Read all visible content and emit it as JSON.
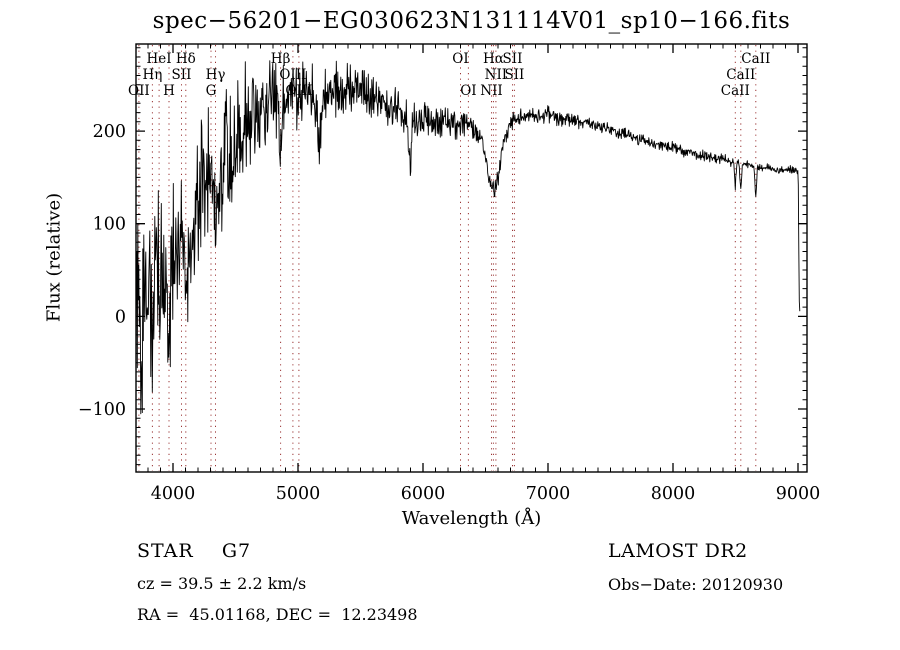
{
  "title": "spec−56201−EG030623N131114V01_sp10−166.fits",
  "chart_data": {
    "type": "line",
    "title": "spec−56201−EG030623N131114V01_sp10−166.fits",
    "xlabel": "Wavelength (Å)",
    "ylabel": "Flux (relative)",
    "xlim": [
      3704,
      9072
    ],
    "ylim": [
      -168,
      294
    ],
    "xticks": [
      4000,
      5000,
      6000,
      7000,
      8000,
      9000
    ],
    "yticks": [
      -100,
      0,
      100,
      200
    ],
    "x_minor_step": 100,
    "y_minor_step": 10,
    "grid": false,
    "legend": "none",
    "line_color": "#000000",
    "spectral_line_color": "#993333",
    "sample_step_angstrom": 4,
    "spectral_lines": [
      {
        "wavelength": 3727,
        "label": "OII",
        "row": 3
      },
      {
        "wavelength": 3835,
        "label": "Hη",
        "row": 2
      },
      {
        "wavelength": 3889,
        "label": "HeI",
        "row": 1
      },
      {
        "wavelength": 3968,
        "label": "H",
        "row": 3
      },
      {
        "wavelength": 4068,
        "label": "SII",
        "row": 2
      },
      {
        "wavelength": 4102,
        "label": "Hδ",
        "row": 1
      },
      {
        "wavelength": 4304,
        "label": "G",
        "row": 3
      },
      {
        "wavelength": 4340,
        "label": "Hγ",
        "row": 2
      },
      {
        "wavelength": 4861,
        "label": "Hβ",
        "row": 1
      },
      {
        "wavelength": 4959,
        "label": "OIII",
        "row": 2
      },
      {
        "wavelength": 5007,
        "label": "OIII",
        "row": 3
      },
      {
        "wavelength": 6300,
        "label": "OI",
        "row": 1
      },
      {
        "wavelength": 6363,
        "label": "OI",
        "row": 3
      },
      {
        "wavelength": 6548,
        "label": "NII",
        "row": 3
      },
      {
        "wavelength": 6563,
        "label": "Hα",
        "row": 1
      },
      {
        "wavelength": 6583,
        "label": "NII",
        "row": 2
      },
      {
        "wavelength": 6716,
        "label": "SII",
        "row": 1
      },
      {
        "wavelength": 6731,
        "label": "SII",
        "row": 2
      },
      {
        "wavelength": 8498,
        "label": "CaII",
        "row": 3
      },
      {
        "wavelength": 8542,
        "label": "CaII",
        "row": 2
      },
      {
        "wavelength": 8662,
        "label": "CaII",
        "row": 1
      }
    ],
    "flux_envelope": [
      [
        3704,
        15
      ],
      [
        3750,
        22
      ],
      [
        3800,
        32
      ],
      [
        3850,
        42
      ],
      [
        3900,
        52
      ],
      [
        3950,
        64
      ],
      [
        4000,
        72
      ],
      [
        4050,
        82
      ],
      [
        4100,
        94
      ],
      [
        4150,
        105
      ],
      [
        4200,
        117
      ],
      [
        4250,
        130
      ],
      [
        4300,
        142
      ],
      [
        4350,
        154
      ],
      [
        4400,
        167
      ],
      [
        4450,
        180
      ],
      [
        4500,
        192
      ],
      [
        4550,
        202
      ],
      [
        4600,
        212
      ],
      [
        4650,
        219
      ],
      [
        4700,
        225
      ],
      [
        4750,
        229
      ],
      [
        4800,
        233
      ],
      [
        4850,
        236
      ],
      [
        4900,
        239
      ],
      [
        4950,
        241
      ],
      [
        5000,
        242
      ],
      [
        5100,
        241
      ],
      [
        5200,
        240
      ],
      [
        5300,
        242
      ],
      [
        5400,
        244
      ],
      [
        5500,
        242
      ],
      [
        5600,
        237
      ],
      [
        5700,
        230
      ],
      [
        5800,
        222
      ],
      [
        5900,
        213
      ],
      [
        6000,
        210
      ],
      [
        6100,
        212
      ],
      [
        6200,
        210
      ],
      [
        6300,
        207
      ],
      [
        6400,
        203
      ],
      [
        6500,
        199
      ],
      [
        6600,
        197
      ],
      [
        6650,
        202
      ],
      [
        6700,
        208
      ],
      [
        6800,
        216
      ],
      [
        6900,
        219
      ],
      [
        7000,
        218
      ],
      [
        7100,
        215
      ],
      [
        7200,
        212
      ],
      [
        7300,
        209
      ],
      [
        7400,
        205
      ],
      [
        7500,
        201
      ],
      [
        7600,
        197
      ],
      [
        7700,
        193
      ],
      [
        7800,
        189
      ],
      [
        7900,
        185
      ],
      [
        8000,
        182
      ],
      [
        8100,
        178
      ],
      [
        8200,
        175
      ],
      [
        8300,
        172
      ],
      [
        8400,
        169
      ],
      [
        8500,
        166
      ],
      [
        8600,
        164
      ],
      [
        8700,
        161
      ],
      [
        8800,
        159
      ],
      [
        8900,
        158
      ],
      [
        8980,
        159
      ],
      [
        9000,
        156
      ],
      [
        9003,
        130
      ],
      [
        9006,
        70
      ],
      [
        9009,
        20
      ],
      [
        9012,
        6
      ],
      [
        9016,
        4
      ]
    ],
    "noise_amplitude": [
      [
        3704,
        135
      ],
      [
        3750,
        130
      ],
      [
        3800,
        122
      ],
      [
        3850,
        114
      ],
      [
        3900,
        108
      ],
      [
        3950,
        104
      ],
      [
        4000,
        100
      ],
      [
        4100,
        102
      ],
      [
        4200,
        98
      ],
      [
        4300,
        92
      ],
      [
        4400,
        85
      ],
      [
        4500,
        78
      ],
      [
        4600,
        72
      ],
      [
        4700,
        62
      ],
      [
        4800,
        52
      ],
      [
        4900,
        46
      ],
      [
        5000,
        43
      ],
      [
        5100,
        40
      ],
      [
        5200,
        38
      ],
      [
        5300,
        36
      ],
      [
        5400,
        34
      ],
      [
        5500,
        33
      ],
      [
        5600,
        31
      ],
      [
        5700,
        30
      ],
      [
        5800,
        28
      ],
      [
        5900,
        26
      ],
      [
        6000,
        25
      ],
      [
        6100,
        24
      ],
      [
        6200,
        22
      ],
      [
        6300,
        20
      ],
      [
        6400,
        17
      ],
      [
        6500,
        14
      ],
      [
        6600,
        13
      ],
      [
        6700,
        12
      ],
      [
        6800,
        12
      ],
      [
        6900,
        11
      ],
      [
        7000,
        11
      ],
      [
        7200,
        10
      ],
      [
        7400,
        9
      ],
      [
        7600,
        9
      ],
      [
        7800,
        8
      ],
      [
        8000,
        8
      ],
      [
        8200,
        7
      ],
      [
        8400,
        7
      ],
      [
        8600,
        6
      ],
      [
        8800,
        5
      ],
      [
        9000,
        5
      ],
      [
        9016,
        3
      ]
    ],
    "absorption_features": [
      {
        "wavelength": 3750,
        "depth": 28,
        "sigma": 6
      },
      {
        "wavelength": 3770,
        "depth": 25,
        "sigma": 5
      },
      {
        "wavelength": 3798,
        "depth": 30,
        "sigma": 6
      },
      {
        "wavelength": 3835,
        "depth": 30,
        "sigma": 7
      },
      {
        "wavelength": 3889,
        "depth": 32,
        "sigma": 7
      },
      {
        "wavelength": 3933,
        "depth": 55,
        "sigma": 9
      },
      {
        "wavelength": 3968,
        "depth": 50,
        "sigma": 9
      },
      {
        "wavelength": 4102,
        "depth": 42,
        "sigma": 9
      },
      {
        "wavelength": 4340,
        "depth": 44,
        "sigma": 9
      },
      {
        "wavelength": 4861,
        "depth": 46,
        "sigma": 10
      },
      {
        "wavelength": 5175,
        "depth": 50,
        "sigma": 15
      },
      {
        "wavelength": 5894,
        "depth": 42,
        "sigma": 11
      },
      {
        "wavelength": 6563,
        "depth": 62,
        "sigma": 48
      },
      {
        "wavelength": 8498,
        "depth": 24,
        "sigma": 6
      },
      {
        "wavelength": 8542,
        "depth": 29,
        "sigma": 6
      },
      {
        "wavelength": 8662,
        "depth": 31,
        "sigma": 6
      }
    ]
  },
  "footer": {
    "class_line": "STAR    G7",
    "cz_line": "cz = 39.5 ± 2.2 km/s",
    "radec_line": "RA =  45.01168, DEC =  12.23498",
    "survey": "LAMOST DR2",
    "obs_date_line": "Obs−Date: 20120930"
  }
}
